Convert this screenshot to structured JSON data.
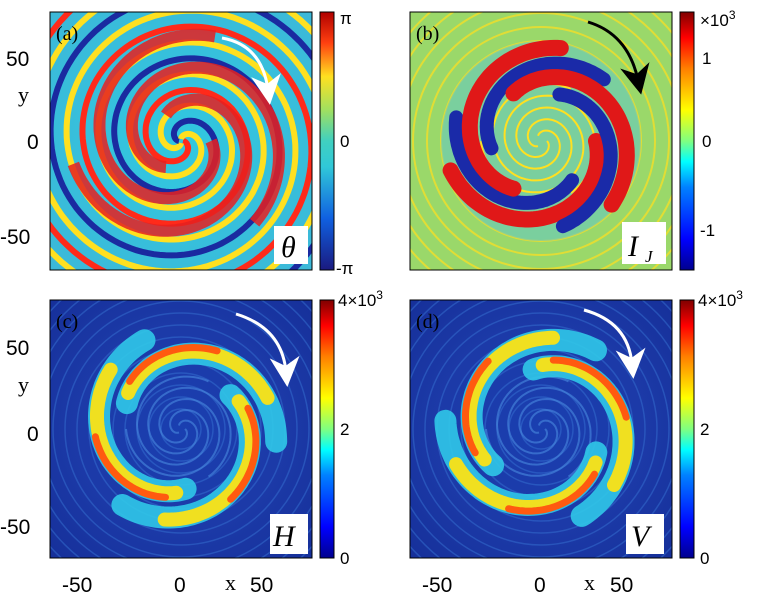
{
  "figure": {
    "panels": [
      {
        "id": "a",
        "label": "(a)",
        "quantity": "θ",
        "quantity_sub": "",
        "arrow_color": "#ffffff",
        "colormap": "phase",
        "colorbar_ticks": [
          "π",
          "0",
          "-π"
        ],
        "colorbar_exponent": ""
      },
      {
        "id": "b",
        "label": "(b)",
        "quantity": "I",
        "quantity_sub": "J",
        "arrow_color": "#000000",
        "colormap": "jet",
        "colorbar_ticks": [
          "1",
          "0",
          "-1"
        ],
        "colorbar_exponent": "×10",
        "colorbar_exponent_power": "3"
      },
      {
        "id": "c",
        "label": "(c)",
        "quantity": "H",
        "quantity_sub": "",
        "arrow_color": "#ffffff",
        "colormap": "jet",
        "colorbar_ticks": [
          "4×10",
          "2",
          "0"
        ],
        "colorbar_top_power": "3"
      },
      {
        "id": "d",
        "label": "(d)",
        "quantity": "V",
        "quantity_sub": "",
        "arrow_color": "#ffffff",
        "colormap": "jet",
        "colorbar_ticks": [
          "4×10",
          "2",
          "0"
        ],
        "colorbar_top_power": "3"
      }
    ],
    "axes": {
      "y_label": "y",
      "x_label": "x",
      "y_ticks": [
        "50",
        "0",
        "-50"
      ],
      "x_ticks": [
        "-50",
        "0",
        "50"
      ]
    },
    "colors": {
      "jet": [
        "#00008f",
        "#0000ff",
        "#0080ff",
        "#00ffff",
        "#80ff80",
        "#ffff00",
        "#ff8000",
        "#ff0000",
        "#800000"
      ],
      "background_b": "#9ad86a"
    }
  }
}
